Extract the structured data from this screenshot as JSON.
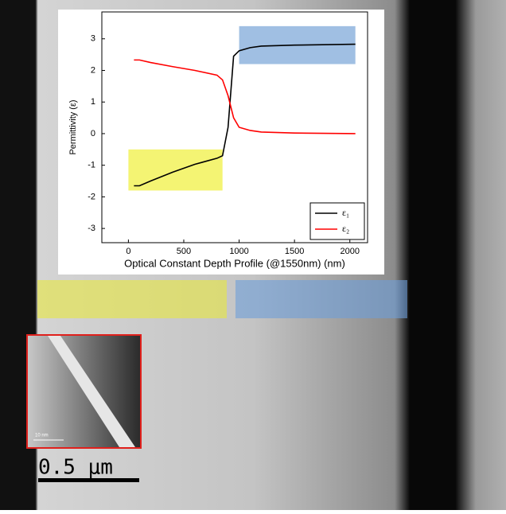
{
  "chart_data": {
    "type": "line",
    "xlabel": "Optical Constant Depth Profile (@1550nm) (nm)",
    "ylabel": "Permittivity (ε)",
    "x": [
      50,
      100,
      200,
      400,
      600,
      800,
      850,
      900,
      950,
      1000,
      1100,
      1200,
      1500,
      2050
    ],
    "series": [
      {
        "name": "ε₁",
        "color": "#000000",
        "values": [
          -1.65,
          -1.65,
          -1.5,
          -1.22,
          -0.97,
          -0.78,
          -0.7,
          0.2,
          2.45,
          2.62,
          2.72,
          2.77,
          2.8,
          2.83
        ]
      },
      {
        "name": "ε₂",
        "color": "#ff0000",
        "values": [
          2.33,
          2.33,
          2.25,
          2.12,
          2.0,
          1.85,
          1.7,
          1.2,
          0.5,
          0.2,
          0.1,
          0.05,
          0.02,
          0.0
        ]
      }
    ],
    "highlights": [
      {
        "xlim": [
          0,
          850
        ],
        "ylim": [
          -1.8,
          -0.5
        ],
        "color": "#f2f25a"
      },
      {
        "xlim": [
          1000,
          2050
        ],
        "ylim": [
          2.2,
          3.4
        ],
        "color": "#8fb4de"
      }
    ],
    "xlim": [
      -240,
      2160
    ],
    "ylim": [
      -3.45,
      3.85
    ],
    "xticks": [
      0,
      500,
      1000,
      1500,
      2000
    ],
    "yticks": [
      -3,
      -2,
      -1,
      0,
      1,
      2,
      3
    ],
    "legend": "lower right"
  },
  "inset_scale": "10 nm",
  "scale_bar": "0.5 μm"
}
